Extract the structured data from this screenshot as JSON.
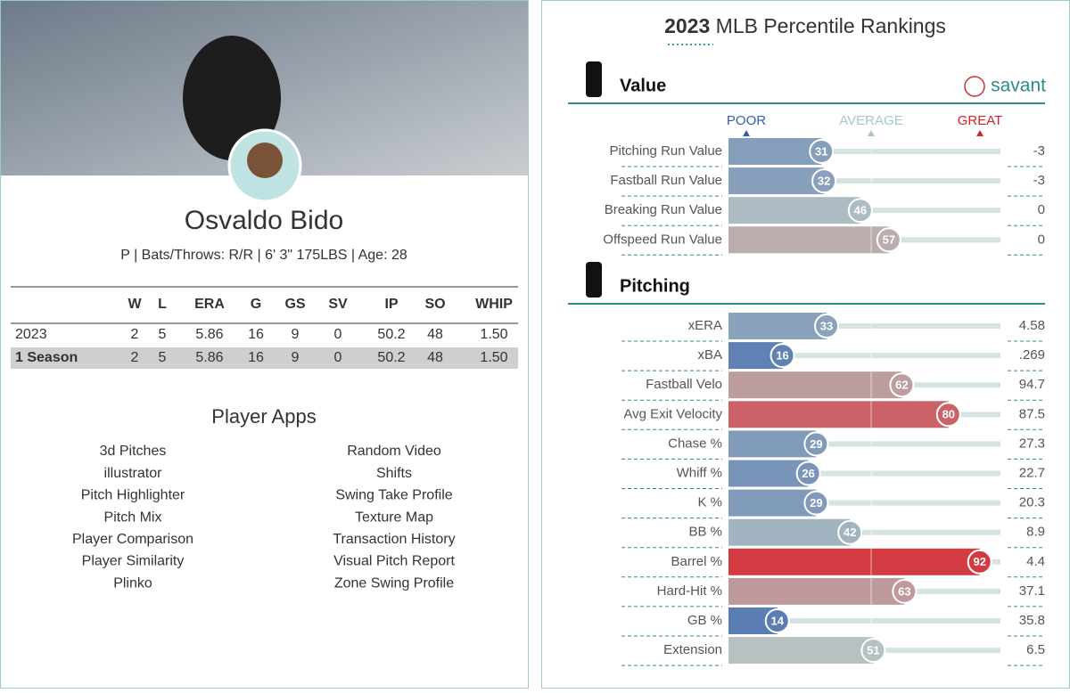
{
  "player": {
    "name": "Osvaldo Bido",
    "info": "P | Bats/Throws: R/R | 6' 3\" 175LBS | Age: 28"
  },
  "stats": {
    "headers": [
      "W",
      "L",
      "ERA",
      "G",
      "GS",
      "SV",
      "IP",
      "SO",
      "WHIP"
    ],
    "rows": [
      {
        "label": "2023",
        "cells": [
          "2",
          "5",
          "5.86",
          "16",
          "9",
          "0",
          "50.2",
          "48",
          "1.50"
        ]
      },
      {
        "label": "1 Season",
        "cells": [
          "2",
          "5",
          "5.86",
          "16",
          "9",
          "0",
          "50.2",
          "48",
          "1.50"
        ]
      }
    ]
  },
  "apps": {
    "title": "Player Apps",
    "left": [
      "3d Pitches",
      "illustrator",
      "Pitch Highlighter",
      "Pitch Mix",
      "Player Comparison",
      "Player Similarity",
      "Plinko"
    ],
    "right": [
      "Random Video",
      "Shifts",
      "Swing Take Profile",
      "Texture Map",
      "Transaction History",
      "Visual Pitch Report",
      "Zone Swing Profile"
    ]
  },
  "rankings": {
    "title_year": "2023",
    "title_rest": "MLB Percentile Rankings",
    "brand": "savant",
    "scale": [
      "POOR",
      "AVERAGE",
      "GREAT"
    ],
    "sections": [
      {
        "title": "Value",
        "rows": [
          {
            "label": "Pitching Run Value",
            "percentile": 31,
            "value": "-3"
          },
          {
            "label": "Fastball Run Value",
            "percentile": 32,
            "value": "-3"
          },
          {
            "label": "Breaking Run Value",
            "percentile": 46,
            "value": "0"
          },
          {
            "label": "Offspeed Run Value",
            "percentile": 57,
            "value": "0"
          }
        ]
      },
      {
        "title": "Pitching",
        "rows": [
          {
            "label": "xERA",
            "percentile": 33,
            "value": "4.58"
          },
          {
            "label": "xBA",
            "percentile": 16,
            "value": ".269"
          },
          {
            "label": "Fastball Velo",
            "percentile": 62,
            "value": "94.7"
          },
          {
            "label": "Avg Exit Velocity",
            "percentile": 80,
            "value": "87.5"
          },
          {
            "label": "Chase %",
            "percentile": 29,
            "value": "27.3"
          },
          {
            "label": "Whiff %",
            "percentile": 26,
            "value": "22.7"
          },
          {
            "label": "K %",
            "percentile": 29,
            "value": "20.3"
          },
          {
            "label": "BB %",
            "percentile": 42,
            "value": "8.9"
          },
          {
            "label": "Barrel %",
            "percentile": 92,
            "value": "4.4"
          },
          {
            "label": "Hard-Hit %",
            "percentile": 63,
            "value": "37.1"
          },
          {
            "label": "GB %",
            "percentile": 14,
            "value": "35.8"
          },
          {
            "label": "Extension",
            "percentile": 51,
            "value": "6.5"
          }
        ]
      }
    ]
  }
}
